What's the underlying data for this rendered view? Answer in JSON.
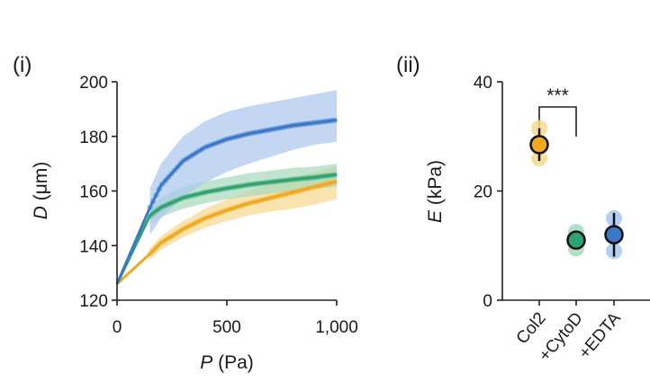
{
  "colors": {
    "col2": "#f2a81d",
    "cytod": "#2fa36e",
    "edta": "#3a78c9",
    "col2_band": "#f7d98e",
    "cytod_band": "#a7d9bd",
    "edta_band": "#a9c6ee"
  },
  "chart_data": [
    {
      "type": "line",
      "panel_label": "(i)",
      "xlabel_var": "P",
      "xlabel_unit": " (Pa)",
      "ylabel_var": "D",
      "ylabel_unit": " (μm)",
      "xlim": [
        0,
        1000
      ],
      "ylim": [
        120,
        200
      ],
      "x_ticks": [
        0,
        500,
        1000
      ],
      "x_tick_labels": [
        "0",
        "500",
        "1,000"
      ],
      "y_ticks": [
        120,
        140,
        160,
        180,
        200
      ],
      "y_tick_labels": [
        "120",
        "140",
        "160",
        "180",
        "200"
      ],
      "series": [
        {
          "name": "Col2",
          "color_key": "col2",
          "x": [
            0,
            150,
            200,
            300,
            400,
            500,
            600,
            700,
            800,
            900,
            1000
          ],
          "y": [
            126,
            137,
            141,
            146,
            150,
            153,
            155.5,
            157.5,
            159.5,
            161.5,
            163.5
          ],
          "band_lo": [
            126,
            135,
            138.5,
            143,
            146.5,
            149,
            151,
            152.5,
            153.5,
            155,
            157
          ],
          "band_hi": [
            126,
            139,
            143.5,
            149,
            153.5,
            157,
            160,
            162.5,
            165,
            167,
            169
          ]
        },
        {
          "name": "+CytoD",
          "color_key": "cytod",
          "x": [
            0,
            150,
            200,
            300,
            400,
            500,
            600,
            700,
            800,
            900,
            1000
          ],
          "y": [
            126,
            151,
            154,
            157.5,
            159.5,
            161,
            162.3,
            163.3,
            164.2,
            165,
            166
          ],
          "band_lo": [
            126,
            148,
            150.5,
            153.5,
            155.5,
            157,
            158,
            159,
            160,
            161,
            161.5
          ],
          "band_hi": [
            126,
            154,
            157.5,
            161.5,
            163.5,
            165,
            166.5,
            167.5,
            168.5,
            169,
            170
          ]
        },
        {
          "name": "+EDTA",
          "color_key": "edta",
          "x": [
            0,
            150,
            200,
            300,
            400,
            500,
            600,
            700,
            800,
            900,
            1000
          ],
          "y": [
            126,
            154,
            162,
            171,
            176,
            179,
            181,
            182.5,
            184,
            185,
            186
          ],
          "band_lo": [
            126,
            144,
            150,
            158,
            163,
            167,
            170,
            172.5,
            175,
            177,
            178
          ],
          "band_hi": [
            126,
            161,
            170,
            180,
            185.5,
            189,
            191,
            192.5,
            194,
            195.5,
            197
          ]
        }
      ]
    },
    {
      "type": "scatter",
      "panel_label": "(ii)",
      "ylabel_var": "E",
      "ylabel_unit": " (kPa)",
      "ylim": [
        0,
        40
      ],
      "y_ticks": [
        0,
        20,
        40
      ],
      "y_tick_labels": [
        "0",
        "20",
        "40"
      ],
      "categories": [
        "Col2",
        "+CytoD",
        "+EDTA"
      ],
      "means": [
        28.5,
        11,
        12
      ],
      "errors": [
        3,
        1.5,
        4
      ],
      "replicates": [
        [
          26,
          28.5,
          31.5
        ],
        [
          9.5,
          11,
          12.5
        ],
        [
          9,
          12,
          15
        ]
      ],
      "significance": {
        "label": "***",
        "between": [
          "Col2",
          "+CytoD"
        ]
      }
    }
  ]
}
